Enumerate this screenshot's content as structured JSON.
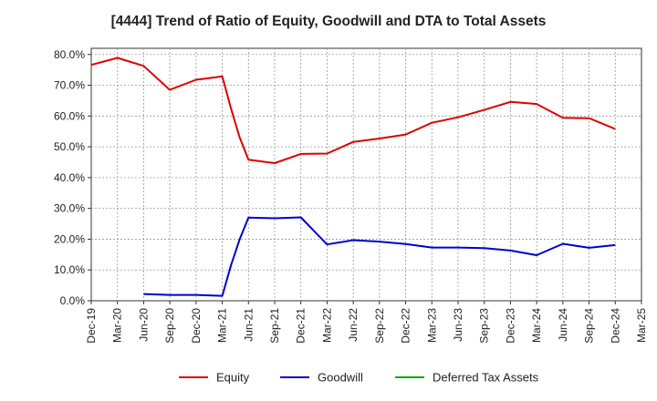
{
  "chart_data": {
    "type": "line",
    "title": "[4444]  Trend of Ratio of Equity, Goodwill and DTA to Total Assets",
    "xlabel": "",
    "ylabel": "",
    "x_ticks": [
      "Dec-19",
      "Mar-20",
      "Jun-20",
      "Sep-20",
      "Dec-20",
      "Mar-21",
      "Jun-21",
      "Sep-21",
      "Dec-21",
      "Mar-22",
      "Jun-22",
      "Sep-22",
      "Dec-22",
      "Mar-23",
      "Jun-23",
      "Sep-23",
      "Dec-23",
      "Mar-24",
      "Jun-24",
      "Sep-24",
      "Dec-24",
      "Mar-25"
    ],
    "y_ticks": [
      "0.0%",
      "10.0%",
      "20.0%",
      "30.0%",
      "40.0%",
      "50.0%",
      "60.0%",
      "70.0%",
      "80.0%"
    ],
    "ylim": [
      0,
      82
    ],
    "grid": true,
    "legend_position": "bottom",
    "series": [
      {
        "name": "Equity",
        "color": "#dd0000",
        "points": [
          [
            "Dec-19",
            76.6
          ],
          [
            "Mar-20",
            78.9
          ],
          [
            "Jun-20",
            76.3
          ],
          [
            "Sep-20",
            68.5
          ],
          [
            "Dec-20",
            71.8
          ],
          [
            "Feb-21",
            72.5
          ],
          [
            "Mar-21",
            72.9
          ],
          [
            "Apr-21",
            62.5
          ],
          [
            "May-21",
            53.0
          ],
          [
            "Jun-21",
            45.8
          ],
          [
            "Sep-21",
            44.7
          ],
          [
            "Dec-21",
            47.7
          ],
          [
            "Mar-22",
            47.8
          ],
          [
            "Jun-22",
            51.6
          ],
          [
            "Sep-22",
            52.7
          ],
          [
            "Dec-22",
            54.0
          ],
          [
            "Mar-23",
            57.8
          ],
          [
            "Jun-23",
            59.6
          ],
          [
            "Sep-23",
            62.0
          ],
          [
            "Dec-23",
            64.6
          ],
          [
            "Mar-24",
            63.9
          ],
          [
            "Jun-24",
            59.4
          ],
          [
            "Sep-24",
            59.3
          ],
          [
            "Dec-24",
            55.8
          ]
        ]
      },
      {
        "name": "Goodwill",
        "color": "#0000cc",
        "points": [
          [
            "Jun-20",
            2.2
          ],
          [
            "Sep-20",
            1.9
          ],
          [
            "Dec-20",
            1.9
          ],
          [
            "Mar-21",
            1.6
          ],
          [
            "Apr-21",
            11.5
          ],
          [
            "May-21",
            20.0
          ],
          [
            "Jun-21",
            27.0
          ],
          [
            "Sep-21",
            26.8
          ],
          [
            "Dec-21",
            27.1
          ],
          [
            "Mar-22",
            18.3
          ],
          [
            "Jun-22",
            19.7
          ],
          [
            "Sep-22",
            19.2
          ],
          [
            "Dec-22",
            18.4
          ],
          [
            "Mar-23",
            17.3
          ],
          [
            "Jun-23",
            17.3
          ],
          [
            "Sep-23",
            17.1
          ],
          [
            "Dec-23",
            16.3
          ],
          [
            "Mar-24",
            14.8
          ],
          [
            "Jun-24",
            18.5
          ],
          [
            "Sep-24",
            17.2
          ],
          [
            "Dec-24",
            18.1
          ]
        ]
      },
      {
        "name": "Deferred Tax Assets",
        "color": "#00aa00",
        "points": []
      }
    ]
  }
}
